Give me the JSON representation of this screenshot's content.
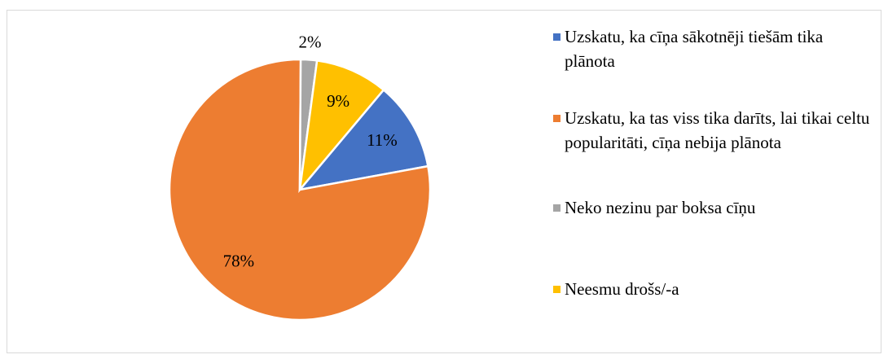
{
  "chart_data": {
    "type": "pie",
    "categories": [
      "Uzskatu, ka cīņa sākotnēji tiešām tika plānota",
      "Uzskatu, ka tas viss tika darīts, lai tikai celtu popularitāti, cīņa nebija plānota",
      "Neko nezinu par boksa cīņu",
      "Neesmu drošs/-a"
    ],
    "values": [
      11,
      78,
      2,
      9
    ],
    "value_labels": [
      "11%",
      "78%",
      "2%",
      "9%"
    ],
    "colors": [
      "#4472c4",
      "#ed7d31",
      "#a5a5a5",
      "#ffc000"
    ],
    "legend": "right"
  }
}
